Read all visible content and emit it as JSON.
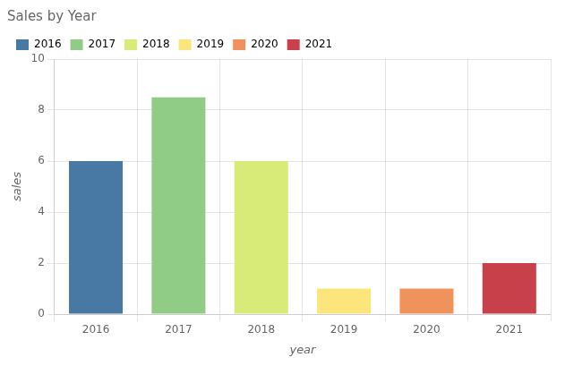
{
  "chart_data": {
    "type": "bar",
    "title": "Sales by Year",
    "xlabel": "year",
    "ylabel": "sales",
    "categories": [
      "2016",
      "2017",
      "2018",
      "2019",
      "2020",
      "2021"
    ],
    "values": [
      6,
      8.5,
      6,
      1,
      1,
      2
    ],
    "colors": [
      "#4878a4",
      "#90cc85",
      "#d8eb78",
      "#fce57a",
      "#f0925c",
      "#c8404a"
    ],
    "ylim": [
      0,
      10
    ],
    "yticks": [
      0,
      2,
      4,
      6,
      8,
      10
    ],
    "grid": true,
    "legend": "upper left"
  }
}
